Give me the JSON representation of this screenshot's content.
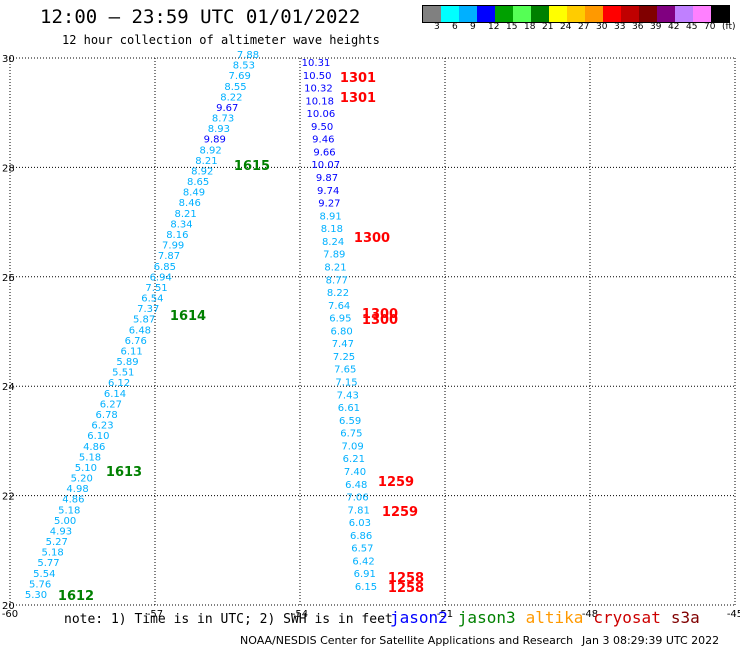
{
  "title": "12:00 – 23:59 UTC 01/01/2022",
  "subtitle": "12 hour collection of altimeter wave heights",
  "colorbar": {
    "colors": [
      "#808080",
      "#00ffff",
      "#00b0ff",
      "#0000ff",
      "#00a000",
      "#55ff55",
      "#008000",
      "#ffff00",
      "#ffcc00",
      "#ff9900",
      "#ff0000",
      "#c00000",
      "#800000",
      "#800080",
      "#c080ff",
      "#ff80ff",
      "#000000"
    ],
    "labels": [
      "3",
      "6",
      "9",
      "12",
      "15",
      "18",
      "21",
      "24",
      "27",
      "30",
      "33",
      "36",
      "39",
      "42",
      "45",
      "70"
    ],
    "unit": "(ft)"
  },
  "map": {
    "lon_ticks": [
      -60,
      -57,
      -54,
      -51,
      -48,
      -45
    ],
    "lat_ticks": [
      20,
      22,
      24,
      26,
      28,
      30
    ],
    "lon_range": [
      -60,
      -45
    ],
    "lat_range": [
      20,
      30
    ]
  },
  "tracks": [
    {
      "name": "left",
      "points": [
        {
          "v": "7.88",
          "c": "#00b0ff"
        },
        {
          "v": "8.53",
          "c": "#00b0ff"
        },
        {
          "v": "7.69",
          "c": "#00b0ff"
        },
        {
          "v": "8.55",
          "c": "#00b0ff"
        },
        {
          "v": "8.22",
          "c": "#00b0ff"
        },
        {
          "v": "9.67",
          "c": "#0000ff"
        },
        {
          "v": "8.73",
          "c": "#00b0ff"
        },
        {
          "v": "8.93",
          "c": "#00b0ff"
        },
        {
          "v": "9.89",
          "c": "#0000ff"
        },
        {
          "v": "8.92",
          "c": "#00b0ff"
        },
        {
          "v": "8.21",
          "c": "#00b0ff"
        },
        {
          "v": "8.92",
          "c": "#00b0ff"
        },
        {
          "v": "8.65",
          "c": "#00b0ff"
        },
        {
          "v": "8.49",
          "c": "#00b0ff"
        },
        {
          "v": "8.46",
          "c": "#00b0ff"
        },
        {
          "v": "8.21",
          "c": "#00b0ff"
        },
        {
          "v": "8.34",
          "c": "#00b0ff"
        },
        {
          "v": "8.16",
          "c": "#00b0ff"
        },
        {
          "v": "7.99",
          "c": "#00b0ff"
        },
        {
          "v": "7.87",
          "c": "#00b0ff"
        },
        {
          "v": "6.85",
          "c": "#00b0ff"
        },
        {
          "v": "6.94",
          "c": "#00b0ff"
        },
        {
          "v": "7.51",
          "c": "#00b0ff"
        },
        {
          "v": "6.54",
          "c": "#00b0ff"
        },
        {
          "v": "7.37",
          "c": "#00b0ff"
        },
        {
          "v": "5.87",
          "c": "#00b0ff"
        },
        {
          "v": "6.48",
          "c": "#00b0ff"
        },
        {
          "v": "6.76",
          "c": "#00b0ff"
        },
        {
          "v": "6.11",
          "c": "#00b0ff"
        },
        {
          "v": "5.89",
          "c": "#00b0ff"
        },
        {
          "v": "5.51",
          "c": "#00b0ff"
        },
        {
          "v": "6.12",
          "c": "#00b0ff"
        },
        {
          "v": "6.14",
          "c": "#00b0ff"
        },
        {
          "v": "6.27",
          "c": "#00b0ff"
        },
        {
          "v": "6.78",
          "c": "#00b0ff"
        },
        {
          "v": "6.23",
          "c": "#00b0ff"
        },
        {
          "v": "6.10",
          "c": "#00b0ff"
        },
        {
          "v": "4.86",
          "c": "#00b0ff"
        },
        {
          "v": "5.18",
          "c": "#00b0ff"
        },
        {
          "v": "5.10",
          "c": "#00b0ff"
        },
        {
          "v": "5.20",
          "c": "#00b0ff"
        },
        {
          "v": "4.98",
          "c": "#00b0ff"
        },
        {
          "v": "4.86",
          "c": "#00b0ff"
        },
        {
          "v": "5.18",
          "c": "#00b0ff"
        },
        {
          "v": "5.00",
          "c": "#00b0ff"
        },
        {
          "v": "4.93",
          "c": "#00b0ff"
        },
        {
          "v": "5.27",
          "c": "#00b0ff"
        },
        {
          "v": "5.18",
          "c": "#00b0ff"
        },
        {
          "v": "5.77",
          "c": "#00b0ff"
        },
        {
          "v": "5.54",
          "c": "#00b0ff"
        },
        {
          "v": "5.76",
          "c": "#00b0ff"
        },
        {
          "v": "5.30",
          "c": "#00b0ff"
        }
      ]
    },
    {
      "name": "right",
      "points": [
        {
          "v": "10.31",
          "c": "#0000ff"
        },
        {
          "v": "10.50",
          "c": "#0000ff"
        },
        {
          "v": "10.32",
          "c": "#0000ff"
        },
        {
          "v": "10.18",
          "c": "#0000ff"
        },
        {
          "v": "10.06",
          "c": "#0000ff"
        },
        {
          "v": "9.50",
          "c": "#0000ff"
        },
        {
          "v": "9.46",
          "c": "#0000ff"
        },
        {
          "v": "9.66",
          "c": "#0000ff"
        },
        {
          "v": "10.07",
          "c": "#0000ff"
        },
        {
          "v": "9.87",
          "c": "#0000ff"
        },
        {
          "v": "9.74",
          "c": "#0000ff"
        },
        {
          "v": "9.27",
          "c": "#0000ff"
        },
        {
          "v": "8.91",
          "c": "#00b0ff"
        },
        {
          "v": "8.18",
          "c": "#00b0ff"
        },
        {
          "v": "8.24",
          "c": "#00b0ff"
        },
        {
          "v": "7.89",
          "c": "#00b0ff"
        },
        {
          "v": "8.21",
          "c": "#00b0ff"
        },
        {
          "v": "8.77",
          "c": "#00b0ff"
        },
        {
          "v": "8.22",
          "c": "#00b0ff"
        },
        {
          "v": "7.64",
          "c": "#00b0ff"
        },
        {
          "v": "6.95",
          "c": "#00b0ff"
        },
        {
          "v": "6.80",
          "c": "#00b0ff"
        },
        {
          "v": "7.47",
          "c": "#00b0ff"
        },
        {
          "v": "7.25",
          "c": "#00b0ff"
        },
        {
          "v": "7.65",
          "c": "#00b0ff"
        },
        {
          "v": "7.15",
          "c": "#00b0ff"
        },
        {
          "v": "7.43",
          "c": "#00b0ff"
        },
        {
          "v": "6.61",
          "c": "#00b0ff"
        },
        {
          "v": "6.59",
          "c": "#00b0ff"
        },
        {
          "v": "6.75",
          "c": "#00b0ff"
        },
        {
          "v": "7.09",
          "c": "#00b0ff"
        },
        {
          "v": "6.21",
          "c": "#00b0ff"
        },
        {
          "v": "7.40",
          "c": "#00b0ff"
        },
        {
          "v": "6.48",
          "c": "#00b0ff"
        },
        {
          "v": "7.06",
          "c": "#00b0ff"
        },
        {
          "v": "7.81",
          "c": "#00b0ff"
        },
        {
          "v": "6.03",
          "c": "#00b0ff"
        },
        {
          "v": "6.86",
          "c": "#00b0ff"
        },
        {
          "v": "6.57",
          "c": "#00b0ff"
        },
        {
          "v": "6.42",
          "c": "#00b0ff"
        },
        {
          "v": "6.91",
          "c": "#00b0ff"
        },
        {
          "v": "6.15",
          "c": "#00b0ff"
        }
      ]
    }
  ],
  "time_labels": [
    {
      "t": "1301",
      "c": "#ff0000"
    },
    {
      "t": "1301",
      "c": "#ff0000"
    },
    {
      "t": "1300",
      "c": "#ff0000"
    },
    {
      "t": "1300",
      "c": "#ff0000"
    },
    {
      "t": "1300",
      "c": "#ff0000"
    },
    {
      "t": "1259",
      "c": "#ff0000"
    },
    {
      "t": "1259",
      "c": "#ff0000"
    },
    {
      "t": "1258",
      "c": "#ff0000"
    },
    {
      "t": "1258",
      "c": "#ff0000"
    },
    {
      "t": "1615",
      "c": "#008000"
    },
    {
      "t": "1614",
      "c": "#008000"
    },
    {
      "t": "1613",
      "c": "#008000"
    },
    {
      "t": "1612",
      "c": "#008000"
    }
  ],
  "note": "note: 1) Time is in UTC; 2) SWH is in feet",
  "satellites": [
    {
      "name": "jason2",
      "color": "#0000ff"
    },
    {
      "name": "jason3",
      "color": "#008000"
    },
    {
      "name": "altika",
      "color": "#ff9900"
    },
    {
      "name": "cryosat",
      "color": "#cc0000"
    },
    {
      "name": "s3a",
      "color": "#800000"
    }
  ],
  "credit": "NOAA/NESDIS Center for Satellite Applications and Research",
  "credit_date": "Jan  3 08:29:39 UTC 2022"
}
